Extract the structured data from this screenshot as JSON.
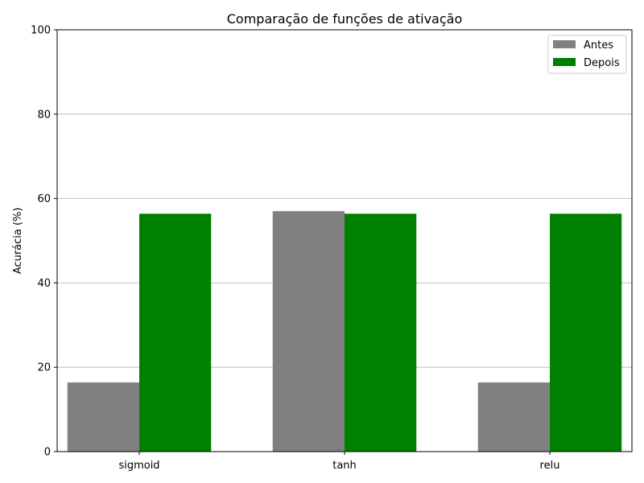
{
  "chart_data": {
    "type": "bar",
    "title": "Comparação de funções de ativação",
    "xlabel": "",
    "ylabel": "Acurácia (%)",
    "categories": [
      "sigmoid",
      "tanh",
      "relu"
    ],
    "series": [
      {
        "name": "Antes",
        "values": [
          16.4,
          57.0,
          16.4
        ],
        "color": "#808080"
      },
      {
        "name": "Depois",
        "values": [
          56.4,
          56.4,
          56.4
        ],
        "color": "#008000"
      }
    ],
    "ylim": [
      0,
      100
    ],
    "yticks": [
      0,
      20,
      40,
      60,
      80,
      100
    ],
    "grid": "y",
    "legend": "top-right"
  }
}
